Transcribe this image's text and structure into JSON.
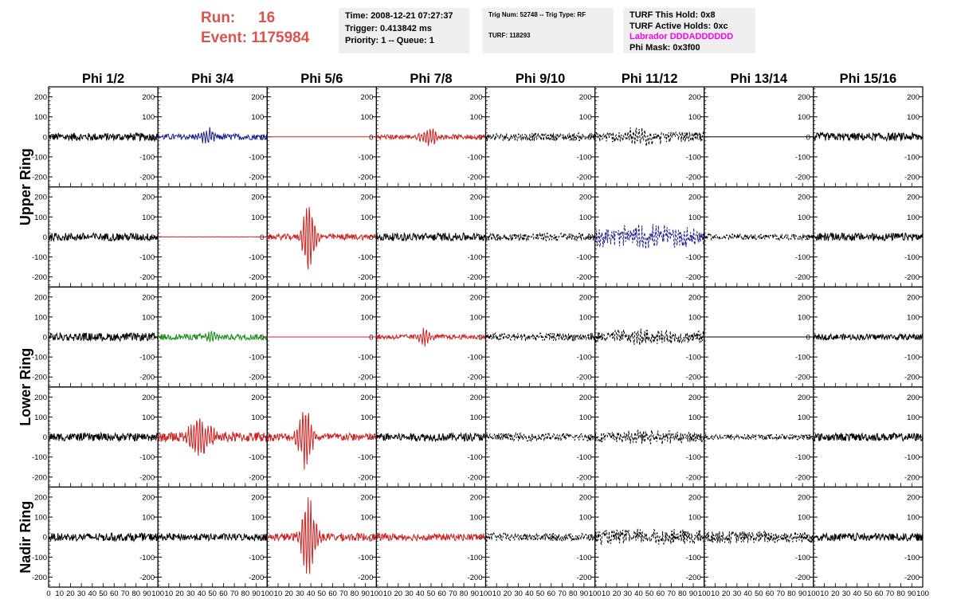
{
  "header": {
    "run_label": "Run:",
    "run_value": "16",
    "event_label": "Event:",
    "event_value": "1175984",
    "time_line": "Time: 2008-12-21 07:27:37",
    "trigger_line": "Trigger: 0.413842 ms",
    "priority_line": "Priority: 1 -- Queue: 1",
    "trig_num_line": "Trig Num: 52748 -- Trig Type: RF",
    "turf_line": "TURF: 118293",
    "turf_this_hold": "TURF This Hold: 0x8",
    "turf_active_holds": "TURF Active Holds: 0xc",
    "labrador_line": "Labrador DDDADDDDDD",
    "phi_mask_line": "Phi Mask: 0x3f00"
  },
  "colors": {
    "header_red": "#d9534f",
    "labrador_magenta": "#ff00ff",
    "trace_black": "#000000",
    "trace_blue": "#1a1f8c",
    "trace_red": "#cc2222",
    "trace_green": "#1a8a1a"
  },
  "chart_data": {
    "type": "line",
    "column_titles": [
      "Phi 1/2",
      "Phi 3/4",
      "Phi 5/6",
      "Phi 7/8",
      "Phi 9/10",
      "Phi 11/12",
      "Phi 13/14",
      "Phi 15/16"
    ],
    "row_titles": [
      "Upper Ring",
      "Lower Ring",
      "Nadir Ring"
    ],
    "ylim": [
      -250,
      250
    ],
    "yticks": [
      -200,
      -100,
      0,
      100,
      200
    ],
    "xlim": [
      0,
      100
    ],
    "xticks": [
      0,
      10,
      20,
      30,
      40,
      50,
      60,
      70,
      80,
      90,
      100
    ],
    "xtick_labels": [
      "0",
      "10",
      "20",
      "30",
      "40",
      "50",
      "60",
      "70",
      "80",
      "90",
      "100"
    ],
    "panel_rows": [
      {
        "ring": "Upper Ring",
        "panels": [
          {
            "color": "black",
            "style": "solid",
            "amp": 20,
            "pulse": 0,
            "center": 50,
            "width": 10
          },
          {
            "color": "blue",
            "style": "solid",
            "amp": 15,
            "pulse": 40,
            "center": 45,
            "width": 8
          },
          {
            "color": "red",
            "style": "flat",
            "amp": 0,
            "pulse": 0,
            "center": 50,
            "width": 10
          },
          {
            "color": "red",
            "style": "solid",
            "amp": 12,
            "pulse": 55,
            "center": 48,
            "width": 8
          },
          {
            "color": "black",
            "style": "dashed",
            "amp": 20,
            "pulse": 0,
            "center": 50,
            "width": 10
          },
          {
            "color": "black",
            "style": "dashed",
            "amp": 25,
            "pulse": 35,
            "center": 40,
            "width": 20
          },
          {
            "color": "black",
            "style": "flat",
            "amp": 0,
            "pulse": 0,
            "center": 50,
            "width": 10
          },
          {
            "color": "black",
            "style": "solid",
            "amp": 20,
            "pulse": 0,
            "center": 50,
            "width": 10
          }
        ]
      },
      {
        "ring": "Upper Ring",
        "panels": [
          {
            "color": "black",
            "style": "solid",
            "amp": 20,
            "pulse": 0,
            "center": 50,
            "width": 10
          },
          {
            "color": "red",
            "style": "flat",
            "amp": 2,
            "pulse": 0,
            "center": 50,
            "width": 10
          },
          {
            "color": "red",
            "style": "solid",
            "amp": 15,
            "pulse": 200,
            "center": 38,
            "width": 6
          },
          {
            "color": "black",
            "style": "solid",
            "amp": 20,
            "pulse": 0,
            "center": 50,
            "width": 10
          },
          {
            "color": "black",
            "style": "dashed",
            "amp": 20,
            "pulse": 0,
            "center": 50,
            "width": 10
          },
          {
            "color": "blue",
            "style": "dashed",
            "amp": 45,
            "pulse": 25,
            "center": 50,
            "width": 40
          },
          {
            "color": "black",
            "style": "dashed",
            "amp": 15,
            "pulse": 0,
            "center": 50,
            "width": 10
          },
          {
            "color": "black",
            "style": "solid",
            "amp": 20,
            "pulse": 0,
            "center": 50,
            "width": 10
          }
        ]
      },
      {
        "ring": "Lower Ring",
        "panels": [
          {
            "color": "black",
            "style": "solid",
            "amp": 20,
            "pulse": 0,
            "center": 50,
            "width": 10
          },
          {
            "color": "green",
            "style": "solid",
            "amp": 15,
            "pulse": 25,
            "center": 50,
            "width": 8
          },
          {
            "color": "red",
            "style": "flat",
            "amp": 0,
            "pulse": 0,
            "center": 50,
            "width": 10
          },
          {
            "color": "red",
            "style": "solid",
            "amp": 12,
            "pulse": 40,
            "center": 45,
            "width": 7
          },
          {
            "color": "black",
            "style": "dashed",
            "amp": 20,
            "pulse": 0,
            "center": 50,
            "width": 10
          },
          {
            "color": "black",
            "style": "dashed",
            "amp": 30,
            "pulse": 20,
            "center": 40,
            "width": 25
          },
          {
            "color": "black",
            "style": "flat",
            "amp": 0,
            "pulse": 0,
            "center": 50,
            "width": 10
          },
          {
            "color": "black",
            "style": "solid",
            "amp": 15,
            "pulse": 0,
            "center": 50,
            "width": 10
          }
        ]
      },
      {
        "ring": "Lower Ring",
        "panels": [
          {
            "color": "black",
            "style": "solid",
            "amp": 20,
            "pulse": 0,
            "center": 50,
            "width": 10
          },
          {
            "color": "red",
            "style": "solid",
            "amp": 25,
            "pulse": 100,
            "center": 38,
            "width": 12
          },
          {
            "color": "red",
            "style": "solid",
            "amp": 20,
            "pulse": 160,
            "center": 35,
            "width": 7
          },
          {
            "color": "black",
            "style": "solid",
            "amp": 20,
            "pulse": 0,
            "center": 50,
            "width": 10
          },
          {
            "color": "black",
            "style": "dashed",
            "amp": 20,
            "pulse": 0,
            "center": 50,
            "width": 10
          },
          {
            "color": "black",
            "style": "dashed",
            "amp": 25,
            "pulse": 20,
            "center": 50,
            "width": 25
          },
          {
            "color": "black",
            "style": "dashed",
            "amp": 15,
            "pulse": 0,
            "center": 50,
            "width": 10
          },
          {
            "color": "black",
            "style": "solid",
            "amp": 20,
            "pulse": 0,
            "center": 50,
            "width": 10
          }
        ]
      },
      {
        "ring": "Nadir Ring",
        "panels": [
          {
            "color": "black",
            "style": "solid",
            "amp": 20,
            "pulse": 0,
            "center": 50,
            "width": 10
          },
          {
            "color": "black",
            "style": "solid",
            "amp": 18,
            "pulse": 0,
            "center": 50,
            "width": 10
          },
          {
            "color": "red",
            "style": "solid",
            "amp": 20,
            "pulse": 220,
            "center": 38,
            "width": 7
          },
          {
            "color": "red",
            "style": "solid",
            "amp": 18,
            "pulse": 0,
            "center": 50,
            "width": 10
          },
          {
            "color": "black",
            "style": "dashed",
            "amp": 20,
            "pulse": 0,
            "center": 50,
            "width": 10
          },
          {
            "color": "black",
            "style": "dashed",
            "amp": 35,
            "pulse": 15,
            "center": 50,
            "width": 30
          },
          {
            "color": "black",
            "style": "dashed",
            "amp": 30,
            "pulse": 0,
            "center": 50,
            "width": 10
          },
          {
            "color": "black",
            "style": "solid",
            "amp": 20,
            "pulse": 0,
            "center": 50,
            "width": 10
          }
        ]
      }
    ]
  }
}
